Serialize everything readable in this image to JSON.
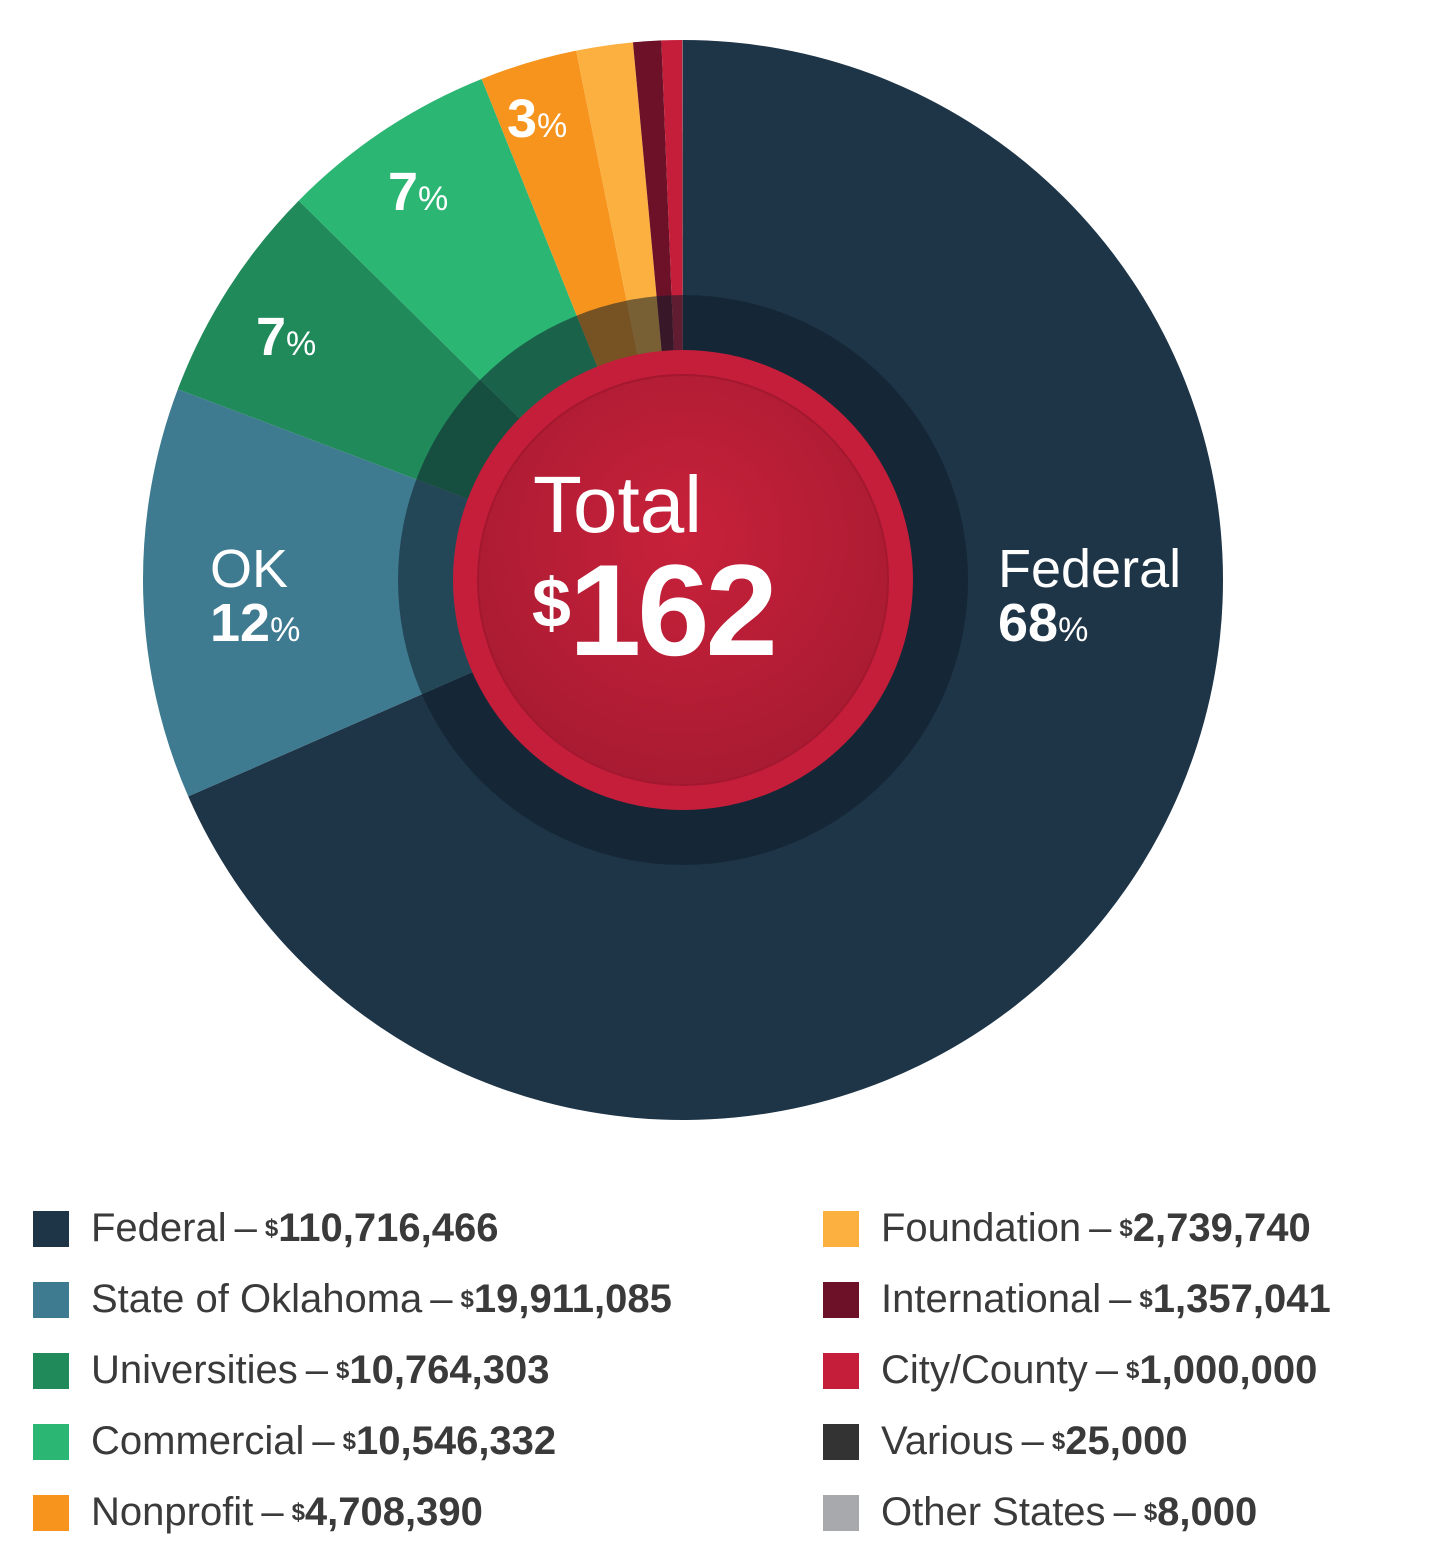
{
  "chart_data": {
    "type": "pie",
    "variant": "donut",
    "center_label": "Total",
    "center_currency": "$",
    "center_value": "162",
    "slices": [
      {
        "name": "Federal",
        "value": 110716466,
        "display": "110,716,466",
        "color": "#1e3447"
      },
      {
        "name": "State of Oklahoma",
        "value": 19911085,
        "display": "19,911,085",
        "color": "#3e7a90"
      },
      {
        "name": "Universities",
        "value": 10764303,
        "display": "10,764,303",
        "color": "#208a5b"
      },
      {
        "name": "Commercial",
        "value": 10546332,
        "display": "10,546,332",
        "color": "#2cb673"
      },
      {
        "name": "Nonprofit",
        "value": 4708390,
        "display": "4,708,390",
        "color": "#f7941d"
      },
      {
        "name": "Foundation",
        "value": 2739740,
        "display": "2,739,740",
        "color": "#fbb040"
      },
      {
        "name": "International",
        "value": 1357041,
        "display": "1,357,041",
        "color": "#6c1128"
      },
      {
        "name": "City/County",
        "value": 1000000,
        "display": "1,000,000",
        "color": "#c41e3a"
      },
      {
        "name": "Various",
        "value": 25000,
        "display": "25,000",
        "color": "#333333"
      },
      {
        "name": "Other States",
        "value": 8000,
        "display": "8,000",
        "color": "#a7a9ac"
      }
    ],
    "slice_labels": {
      "federal": {
        "name": "Federal",
        "pct": "68",
        "sym": "%"
      },
      "ok": {
        "name": "OK",
        "pct": "12",
        "sym": "%"
      },
      "universities": {
        "pct": "7",
        "sym": "%"
      },
      "commercial": {
        "pct": "7",
        "sym": "%"
      },
      "nonprofit": {
        "pct": "3",
        "sym": "%"
      }
    },
    "legend_separator": "–",
    "legend_currency": "$",
    "legend_placement": "bottom"
  }
}
